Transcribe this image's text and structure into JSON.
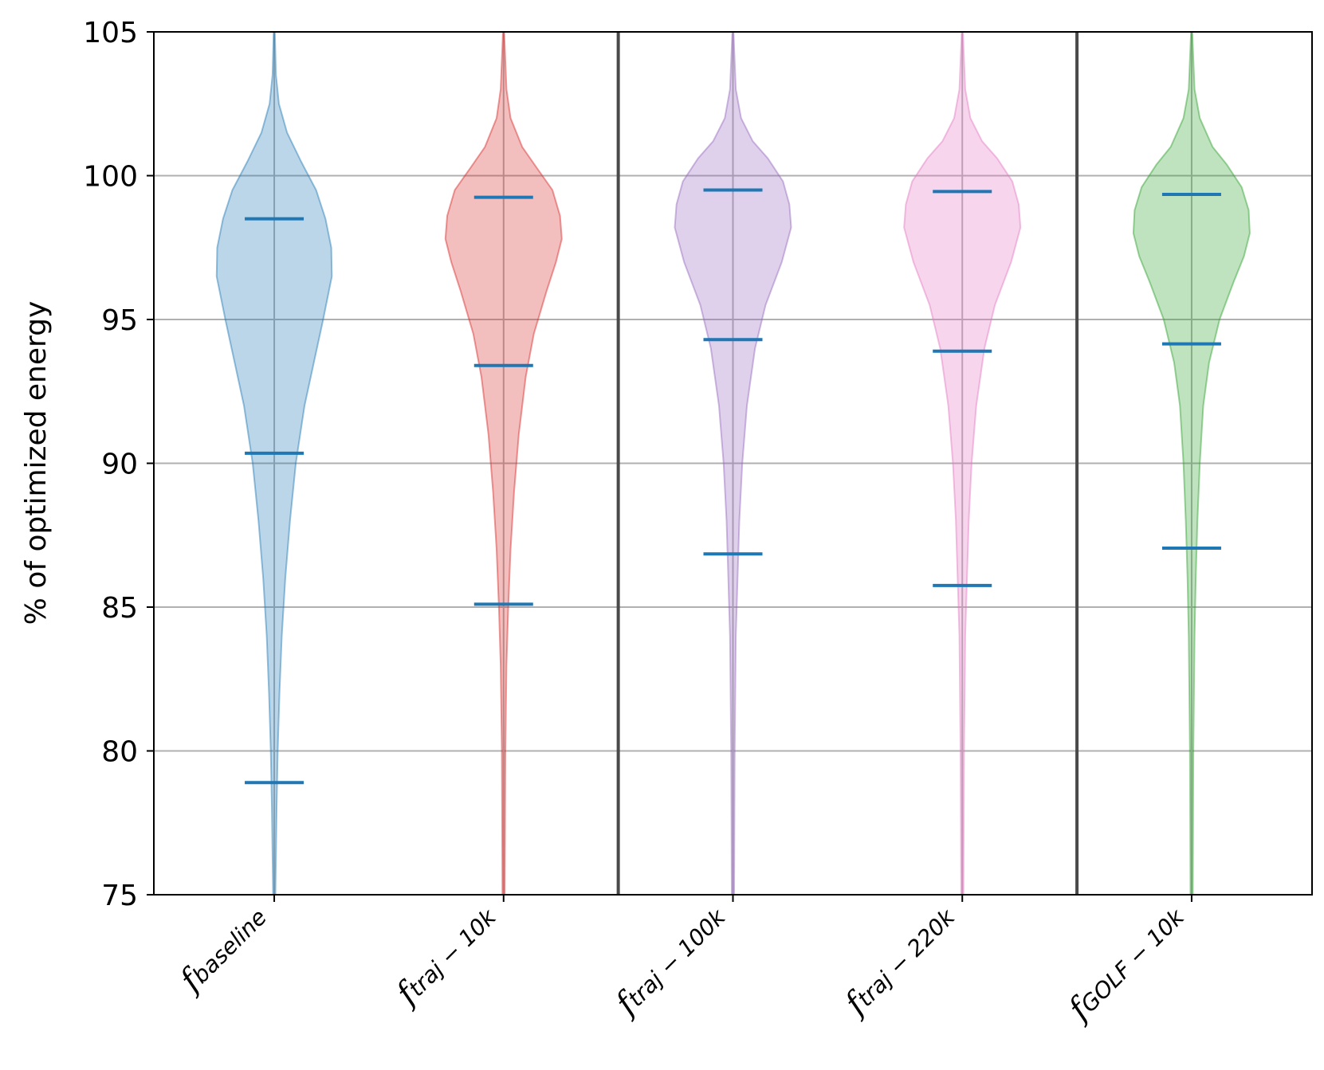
{
  "chart_data": {
    "type": "violin",
    "title": "",
    "xlabel": "",
    "ylabel": "% of optimized energy",
    "ylim": [
      75,
      105
    ],
    "yticks": [
      "75",
      "80",
      "85",
      "90",
      "95",
      "100",
      "105"
    ],
    "grid": true,
    "categories": [
      {
        "prefix": "f",
        "sub": "baseline"
      },
      {
        "prefix": "f",
        "sub": "traj − 10k"
      },
      {
        "prefix": "f",
        "sub": "traj − 100k"
      },
      {
        "prefix": "f",
        "sub": "traj − 220k"
      },
      {
        "prefix": "f",
        "sub": "GOLF − 10k"
      }
    ],
    "group_separators_after": [
      2,
      4
    ],
    "series": [
      {
        "name": "baseline",
        "color": "#1f77b4",
        "min": 74.9,
        "max": 105,
        "mode": 96.5,
        "lines": [
          78.9,
          90.35,
          98.5
        ],
        "profile": [
          [
            75,
            0.02
          ],
          [
            78,
            0.04
          ],
          [
            80,
            0.06
          ],
          [
            82,
            0.09
          ],
          [
            84,
            0.13
          ],
          [
            86,
            0.19
          ],
          [
            88,
            0.27
          ],
          [
            90,
            0.37
          ],
          [
            92,
            0.52
          ],
          [
            93.5,
            0.68
          ],
          [
            95,
            0.84
          ],
          [
            96.5,
            0.99
          ],
          [
            97.5,
            0.98
          ],
          [
            98.5,
            0.88
          ],
          [
            99.5,
            0.72
          ],
          [
            100.5,
            0.46
          ],
          [
            101.5,
            0.22
          ],
          [
            102.5,
            0.08
          ],
          [
            103.5,
            0.03
          ],
          [
            105,
            0.01
          ]
        ]
      },
      {
        "name": "traj-10k",
        "color": "#d62728",
        "min": 74.9,
        "max": 105,
        "mode": 97.8,
        "lines": [
          85.1,
          93.4,
          99.25
        ],
        "profile": [
          [
            75,
            0.02
          ],
          [
            80,
            0.03
          ],
          [
            83,
            0.05
          ],
          [
            85,
            0.08
          ],
          [
            87,
            0.12
          ],
          [
            89,
            0.18
          ],
          [
            91,
            0.26
          ],
          [
            93,
            0.38
          ],
          [
            94.5,
            0.52
          ],
          [
            96,
            0.74
          ],
          [
            97,
            0.9
          ],
          [
            97.8,
            1.0
          ],
          [
            98.6,
            0.97
          ],
          [
            99.5,
            0.84
          ],
          [
            100.3,
            0.56
          ],
          [
            101,
            0.32
          ],
          [
            102,
            0.12
          ],
          [
            103,
            0.05
          ],
          [
            105,
            0.01
          ]
        ]
      },
      {
        "name": "traj-100k",
        "color": "#9467bd",
        "min": 74.9,
        "max": 105,
        "mode": 98.2,
        "lines": [
          86.85,
          94.3,
          99.5
        ],
        "profile": [
          [
            75,
            0.02
          ],
          [
            80,
            0.03
          ],
          [
            84,
            0.05
          ],
          [
            86,
            0.08
          ],
          [
            88,
            0.11
          ],
          [
            90,
            0.16
          ],
          [
            92,
            0.24
          ],
          [
            94,
            0.38
          ],
          [
            95.5,
            0.56
          ],
          [
            97,
            0.84
          ],
          [
            98.2,
            1.0
          ],
          [
            99,
            0.97
          ],
          [
            99.8,
            0.86
          ],
          [
            100.6,
            0.6
          ],
          [
            101.2,
            0.34
          ],
          [
            102,
            0.14
          ],
          [
            103,
            0.05
          ],
          [
            105,
            0.01
          ]
        ]
      },
      {
        "name": "traj-220k",
        "color": "#e377c2",
        "min": 74.9,
        "max": 105,
        "mode": 98.2,
        "lines": [
          85.75,
          93.9,
          99.45
        ],
        "profile": [
          [
            75,
            0.02
          ],
          [
            80,
            0.03
          ],
          [
            84,
            0.05
          ],
          [
            86,
            0.08
          ],
          [
            88,
            0.11
          ],
          [
            90,
            0.16
          ],
          [
            92,
            0.24
          ],
          [
            94,
            0.38
          ],
          [
            95.5,
            0.56
          ],
          [
            97,
            0.84
          ],
          [
            98.2,
            1.0
          ],
          [
            99,
            0.97
          ],
          [
            99.8,
            0.86
          ],
          [
            100.6,
            0.6
          ],
          [
            101.2,
            0.34
          ],
          [
            102,
            0.14
          ],
          [
            103,
            0.05
          ],
          [
            105,
            0.01
          ]
        ]
      },
      {
        "name": "GOLF-10k",
        "color": "#2ca02c",
        "min": 74.9,
        "max": 105,
        "mode": 98.0,
        "lines": [
          87.05,
          94.15,
          99.35
        ],
        "profile": [
          [
            75,
            0.02
          ],
          [
            80,
            0.03
          ],
          [
            84,
            0.05
          ],
          [
            86,
            0.07
          ],
          [
            88,
            0.1
          ],
          [
            90,
            0.14
          ],
          [
            92,
            0.2
          ],
          [
            93.5,
            0.3
          ],
          [
            95,
            0.48
          ],
          [
            96.3,
            0.72
          ],
          [
            97.2,
            0.9
          ],
          [
            98,
            1.0
          ],
          [
            98.8,
            0.98
          ],
          [
            99.6,
            0.86
          ],
          [
            100.4,
            0.6
          ],
          [
            101,
            0.36
          ],
          [
            102,
            0.14
          ],
          [
            103,
            0.05
          ],
          [
            105,
            0.01
          ]
        ]
      }
    ],
    "line_color": "#1f77b4"
  }
}
